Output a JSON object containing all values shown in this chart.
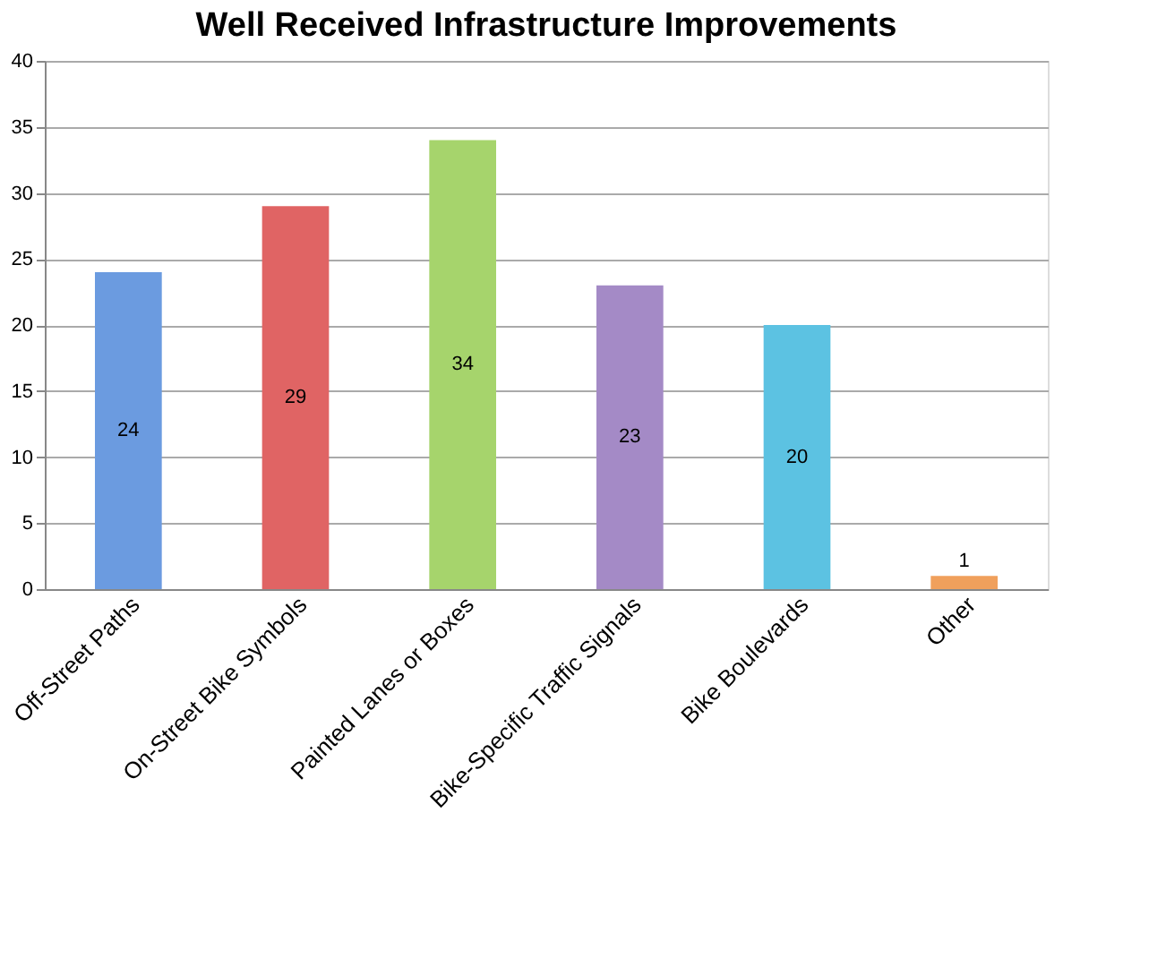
{
  "chart_data": {
    "type": "bar",
    "title": "Well Received Infrastructure Improvements",
    "categories": [
      "Off-Street Paths",
      "On-Street Bike Symbols",
      "Painted Lanes or Boxes",
      "Bike-Specific Traffic Signals",
      "Bike Boulevards",
      "Other"
    ],
    "values": [
      24,
      29,
      34,
      23,
      20,
      1
    ],
    "colors": [
      "#6b9be0",
      "#e06464",
      "#a6d46c",
      "#a48ac6",
      "#5cc2e2",
      "#f0a05c"
    ],
    "ylim": [
      0,
      40
    ],
    "yticks": [
      0,
      5,
      10,
      15,
      20,
      25,
      30,
      35,
      40
    ],
    "grid": "y",
    "data_labels": true,
    "legend": false
  }
}
